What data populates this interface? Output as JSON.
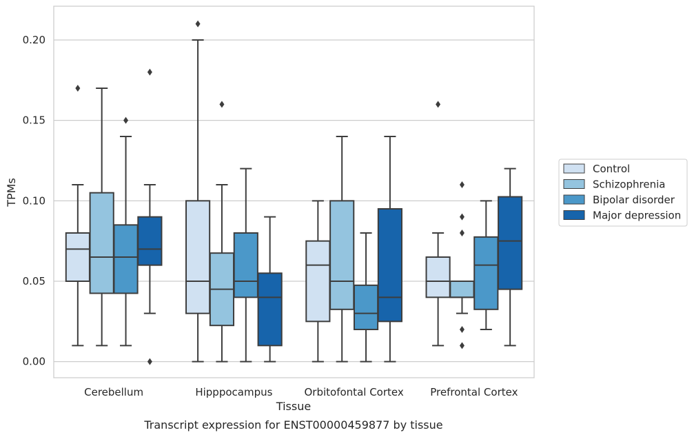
{
  "chart_data": {
    "type": "box",
    "xlabel": "Tissue",
    "ylabel": "TPMs",
    "caption": "Transcript expression for ENST00000459877 by tissue",
    "ylim": [
      -0.01,
      0.221
    ],
    "yticks": [
      0.0,
      0.05,
      0.1,
      0.15,
      0.2
    ],
    "ytick_labels": [
      "0.00",
      "0.05",
      "0.10",
      "0.15",
      "0.20"
    ],
    "grid": "horizontal",
    "legend_position": "right",
    "categories": [
      "Cerebellum",
      "Hipppocampus",
      "Orbitofontal Cortex",
      "Prefrontal Cortex"
    ],
    "series": [
      {
        "name": "Control",
        "color": "#d0e1f2",
        "boxes": [
          {
            "whislo": 0.01,
            "q1": 0.05,
            "med": 0.07,
            "q3": 0.08,
            "whishi": 0.11,
            "fliers": [
              0.17
            ]
          },
          {
            "whislo": 0.0,
            "q1": 0.03,
            "med": 0.05,
            "q3": 0.1,
            "whishi": 0.2,
            "fliers": [
              0.21
            ]
          },
          {
            "whislo": 0.0,
            "q1": 0.025,
            "med": 0.06,
            "q3": 0.075,
            "whishi": 0.1,
            "fliers": []
          },
          {
            "whislo": 0.01,
            "q1": 0.04,
            "med": 0.05,
            "q3": 0.065,
            "whishi": 0.08,
            "fliers": [
              0.16
            ]
          }
        ]
      },
      {
        "name": "Schizophrenia",
        "color": "#94c4df",
        "boxes": [
          {
            "whislo": 0.01,
            "q1": 0.0425,
            "med": 0.065,
            "q3": 0.105,
            "whishi": 0.17,
            "fliers": []
          },
          {
            "whislo": 0.0,
            "q1": 0.0225,
            "med": 0.045,
            "q3": 0.0675,
            "whishi": 0.11,
            "fliers": [
              0.16
            ]
          },
          {
            "whislo": 0.0,
            "q1": 0.0325,
            "med": 0.05,
            "q3": 0.1,
            "whishi": 0.14,
            "fliers": []
          },
          {
            "whislo": 0.03,
            "q1": 0.04,
            "med": 0.04,
            "q3": 0.05,
            "whishi": 0.05,
            "fliers": [
              0.11,
              0.09,
              0.08,
              0.02,
              0.01
            ]
          }
        ]
      },
      {
        "name": "Bipolar disorder",
        "color": "#4b98c9",
        "boxes": [
          {
            "whislo": 0.01,
            "q1": 0.0425,
            "med": 0.065,
            "q3": 0.085,
            "whishi": 0.14,
            "fliers": [
              0.15
            ]
          },
          {
            "whislo": 0.0,
            "q1": 0.04,
            "med": 0.05,
            "q3": 0.08,
            "whishi": 0.12,
            "fliers": []
          },
          {
            "whislo": 0.0,
            "q1": 0.02,
            "med": 0.03,
            "q3": 0.0475,
            "whishi": 0.08,
            "fliers": []
          },
          {
            "whislo": 0.02,
            "q1": 0.0325,
            "med": 0.06,
            "q3": 0.0775,
            "whishi": 0.1,
            "fliers": []
          }
        ]
      },
      {
        "name": "Major depression",
        "color": "#1764ab",
        "boxes": [
          {
            "whislo": 0.03,
            "q1": 0.06,
            "med": 0.07,
            "q3": 0.09,
            "whishi": 0.11,
            "fliers": [
              0.18,
              0.0
            ]
          },
          {
            "whislo": 0.0,
            "q1": 0.01,
            "med": 0.04,
            "q3": 0.055,
            "whishi": 0.09,
            "fliers": []
          },
          {
            "whislo": 0.0,
            "q1": 0.025,
            "med": 0.04,
            "q3": 0.095,
            "whishi": 0.14,
            "fliers": []
          },
          {
            "whislo": 0.01,
            "q1": 0.045,
            "med": 0.075,
            "q3": 0.1025,
            "whishi": 0.12,
            "fliers": []
          }
        ]
      }
    ]
  }
}
